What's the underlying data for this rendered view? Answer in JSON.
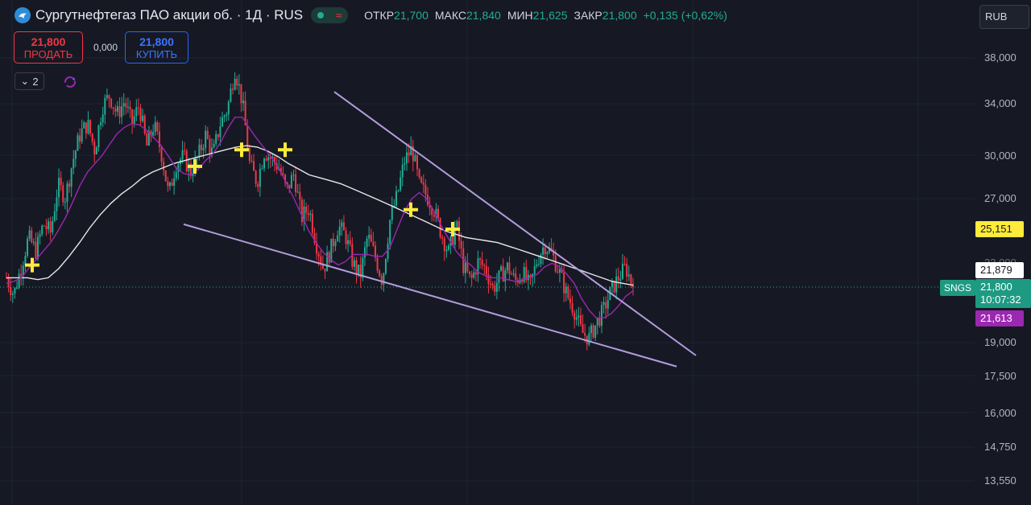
{
  "header": {
    "title": "Сургутнефтегаз ПАО акции об. · 1Д · RUS",
    "ohlc": {
      "open_label": "ОТКР",
      "open": "21,700",
      "high_label": "МАКС",
      "high": "21,840",
      "low_label": "МИН",
      "low": "21,625",
      "close_label": "ЗАКР",
      "close": "21,800",
      "change": "+0,135 (+0,62%)"
    }
  },
  "trade": {
    "sell_price": "21,800",
    "sell_label": "ПРОДАТЬ",
    "spread": "0,000",
    "buy_price": "21,800",
    "buy_label": "КУПИТЬ"
  },
  "indicators": {
    "toggle_label": "2"
  },
  "currency": {
    "label": "RUB"
  },
  "price_axis": {
    "ticks": [
      "38,000",
      "34,000",
      "30,000",
      "27,000",
      "19,000",
      "17,500",
      "16,000",
      "14,750",
      "13,550"
    ],
    "partial_tick": "23,000"
  },
  "price_tags": {
    "ma_yellow": "25,151",
    "ma_white": "21,879",
    "symbol": "SNGS",
    "last_price": "21,800",
    "countdown": "10:07:32",
    "ma_purple": "21,613"
  },
  "colors": {
    "background": "#161924",
    "up": "#22ab94",
    "down": "#f23645",
    "ma_fast": "#9c27b0",
    "ma_slow": "#e8e8e8",
    "trendline": "#b39ddb",
    "signal": "#ffeb3b"
  },
  "chart_data": {
    "type": "candlestick",
    "scale": "log",
    "y_ticks": [
      38000,
      34000,
      30000,
      27000,
      19000,
      17500,
      16000,
      14750,
      13550
    ],
    "last_price": 21.8,
    "close_path": [
      22.3,
      21.4,
      22.9,
      24.6,
      23.8,
      25.4,
      24.9,
      27.9,
      27.1,
      29.6,
      31.6,
      32.4,
      30.3,
      33.8,
      34.7,
      33.1,
      34.2,
      32.4,
      33.9,
      30.6,
      32.3,
      30.2,
      27.2,
      29.4,
      29.9,
      28.8,
      29.9,
      31.5,
      30.0,
      32.4,
      33.6,
      37.0,
      34.1,
      29.3,
      28.1,
      30.3,
      29.7,
      29.1,
      27.5,
      28.7,
      25.8,
      26.4,
      24.3,
      22.8,
      23.9,
      25.3,
      24.7,
      23.1,
      22.4,
      24.7,
      23.5,
      22.1,
      25.6,
      27.2,
      29.6,
      30.5,
      27.9,
      27.2,
      26.3,
      24.8,
      23.7,
      25.4,
      22.9,
      22.1,
      23.2,
      22.8,
      21.7,
      22.4,
      22.9,
      22.1,
      22.6,
      21.8,
      23.3,
      24.2,
      23.6,
      22.6,
      21.4,
      20.6,
      19.5,
      19.2,
      19.9,
      20.6,
      21.6,
      22.3,
      22.9,
      21.8
    ],
    "ma_fast_path": [
      22.0,
      22.1,
      22.3,
      22.8,
      23.3,
      23.8,
      24.3,
      25.0,
      25.8,
      26.8,
      27.9,
      28.8,
      29.4,
      30.0,
      30.8,
      31.6,
      32.1,
      32.4,
      32.3,
      31.9,
      31.3,
      30.7,
      29.9,
      29.1,
      28.7,
      28.6,
      29.0,
      29.6,
      30.1,
      30.9,
      32.0,
      32.9,
      32.9,
      32.0,
      31.2,
      30.5,
      29.8,
      29.0,
      28.0,
      27.0,
      26.0,
      25.0,
      24.3,
      23.7,
      23.3,
      23.0,
      23.2,
      23.6,
      23.6,
      23.6,
      23.5,
      23.5,
      24.0,
      25.1,
      26.2,
      27.0,
      27.4,
      27.0,
      26.2,
      25.3,
      24.5,
      23.8,
      23.3,
      23.0,
      22.6,
      22.4,
      22.3,
      22.3,
      22.2,
      22.1,
      22.2,
      22.3,
      22.5,
      22.9,
      23.1,
      22.9,
      22.5,
      22.0,
      21.2,
      20.6,
      20.2,
      20.2,
      20.4,
      20.8,
      21.3,
      21.6
    ],
    "ma_slow_path": [
      22.3,
      22.3,
      22.3,
      22.2,
      22.3,
      22.8,
      23.5,
      24.3,
      25.2,
      26.0,
      26.7,
      27.3,
      27.8,
      28.4,
      28.8,
      29.1,
      29.4,
      29.6,
      29.8,
      30.0,
      30.2,
      30.4,
      30.6,
      30.7,
      30.6,
      30.3,
      29.9,
      29.4,
      29.0,
      28.6,
      28.4,
      28.2,
      28.0,
      27.7,
      27.4,
      27.1,
      26.8,
      26.5,
      26.2,
      25.9,
      25.6,
      25.3,
      25.0,
      24.8,
      24.6,
      24.5,
      24.4,
      24.3,
      24.1,
      23.9,
      23.7,
      23.5,
      23.3,
      23.1,
      22.9,
      22.7,
      22.5,
      22.3,
      22.1,
      22.0,
      21.9
    ],
    "signals": [
      23.0,
      29.2,
      30.4,
      30.4,
      26.3,
      25.1
    ],
    "trendlines": [
      {
        "name": "resistance",
        "from": 35.0,
        "to": 18.4
      },
      {
        "name": "support",
        "from": 25.4,
        "to": 17.9
      }
    ]
  }
}
